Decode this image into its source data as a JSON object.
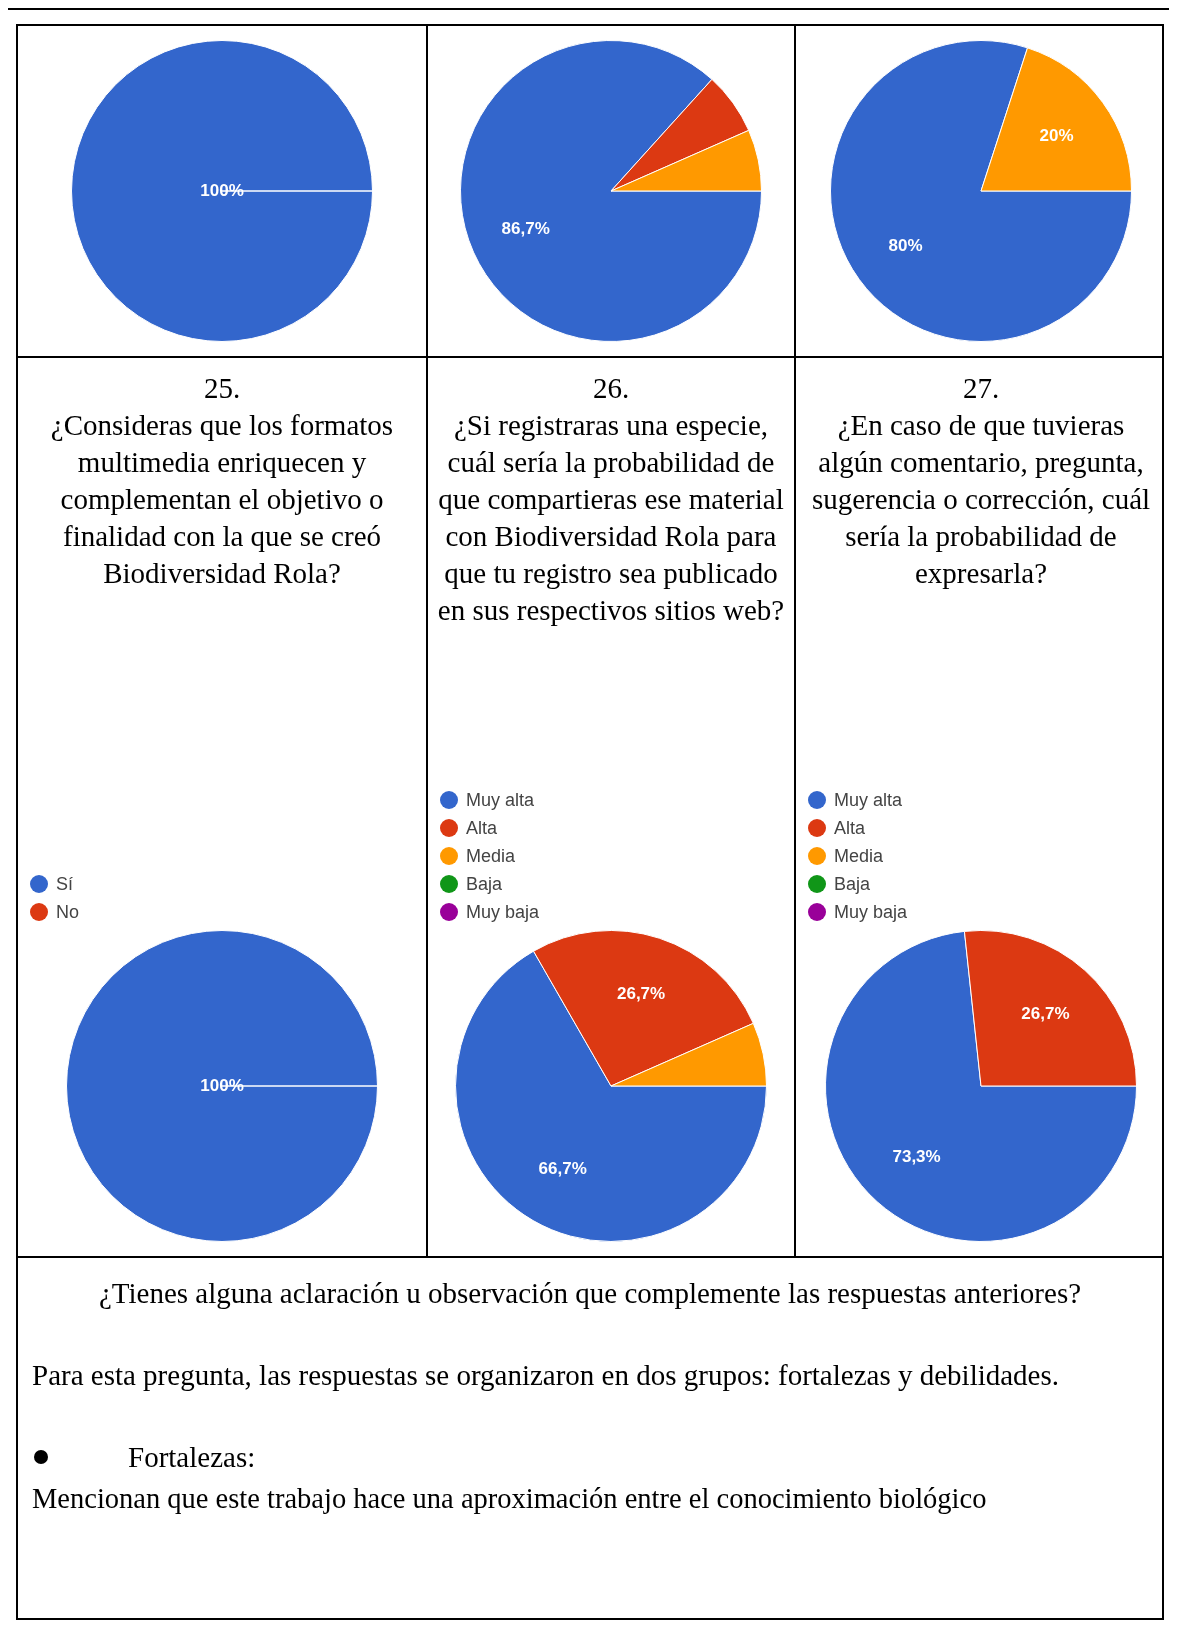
{
  "chart_data": [
    {
      "type": "pie",
      "categories": [
        null
      ],
      "values": [
        100
      ],
      "colors": [
        "#3366cc"
      ],
      "value_labels": [
        "100%"
      ]
    },
    {
      "type": "pie",
      "categories": [
        null,
        null,
        null
      ],
      "values": [
        86.7,
        6.7,
        6.6
      ],
      "colors": [
        "#3366cc",
        "#dc3912",
        "#ff9900"
      ],
      "value_labels": [
        "86,7%",
        null,
        null
      ]
    },
    {
      "type": "pie",
      "categories": [
        null,
        null
      ],
      "values": [
        80,
        20
      ],
      "colors": [
        "#3366cc",
        "#ff9900"
      ],
      "value_labels": [
        "80%",
        "20%"
      ]
    },
    {
      "type": "pie",
      "title": "25.",
      "subtitle": "¿Consideras que los formatos multimedia enriquecen y complementan el objetivo o finalidad con la que se creó Biodiversidad Rola?",
      "categories": [
        "Sí",
        "No"
      ],
      "values": [
        100,
        0
      ],
      "colors": [
        "#3366cc",
        "#dc3912"
      ],
      "value_labels": [
        "100%",
        null
      ],
      "legend": "top left"
    },
    {
      "type": "pie",
      "title": "26.",
      "subtitle": "¿Si registraras una especie, cuál sería la probabilidad de que compartieras ese material con Biodiversidad Rola para que tu registro sea publicado en sus respectivos sitios web?",
      "categories": [
        "Muy alta",
        "Alta",
        "Media",
        "Baja",
        "Muy baja"
      ],
      "values": [
        66.7,
        26.7,
        6.6,
        0,
        0
      ],
      "colors": [
        "#3366cc",
        "#dc3912",
        "#ff9900",
        "#109618",
        "#990099"
      ],
      "value_labels": [
        "66,7%",
        "26,7%",
        null,
        null,
        null
      ],
      "legend": "top left"
    },
    {
      "type": "pie",
      "title": "27.",
      "subtitle": "¿En caso de que tuvieras algún comentario, pregunta, sugerencia o corrección, cuál sería la probabilidad de expresarla?",
      "categories": [
        "Muy alta",
        "Alta",
        "Media",
        "Baja",
        "Muy baja"
      ],
      "values": [
        73.3,
        26.7,
        0,
        0,
        0
      ],
      "colors": [
        "#3366cc",
        "#dc3912",
        "#ff9900",
        "#109618",
        "#990099"
      ],
      "value_labels": [
        "73,3%",
        "26,7%",
        null,
        null,
        null
      ],
      "legend": "top left"
    },
    {
      "type": "other",
      "title": "¿Tienes alguna aclaración u observación que complemente las respuestas anteriores?",
      "annotations": [
        "Para esta pregunta, las respuestas se organizaron en dos grupos: fortalezas y debilidades.",
        "Fortalezas:",
        "Mencionan que este trabajo hace una aproximación entre el conocimiento biológico"
      ]
    }
  ]
}
